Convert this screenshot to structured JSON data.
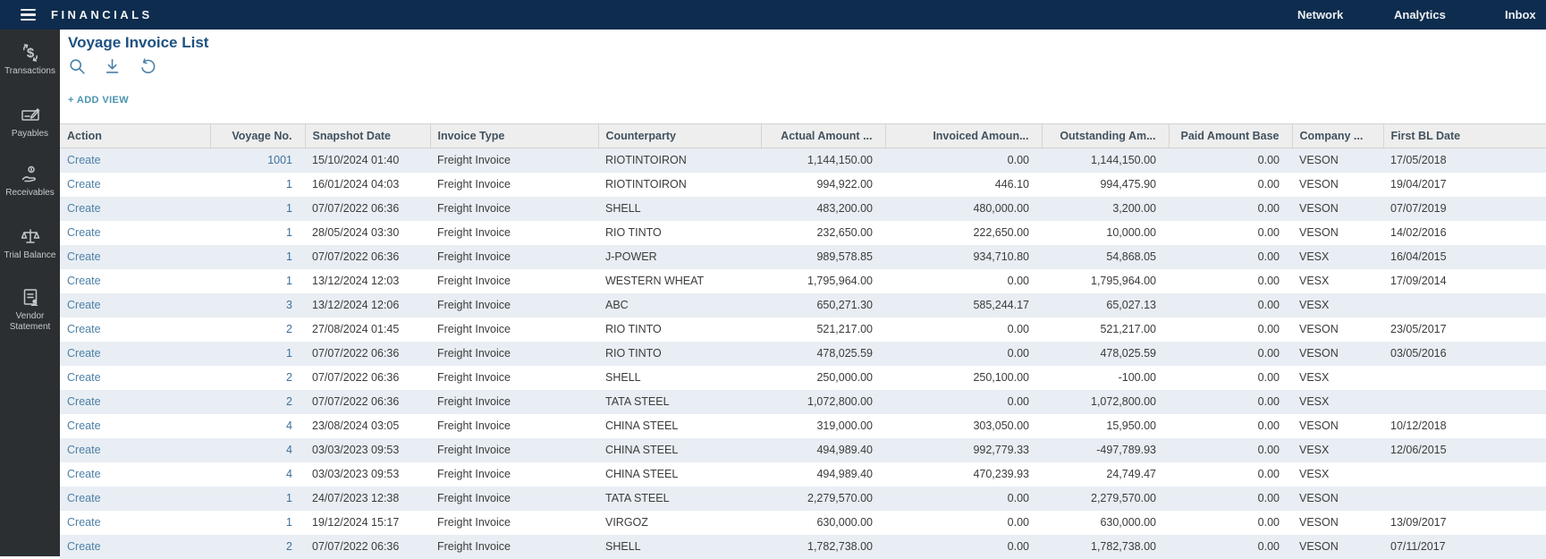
{
  "topbar": {
    "brand": "FINANCIALS",
    "nav": {
      "network": "Network",
      "analytics": "Analytics",
      "inbox": "Inbox"
    }
  },
  "sidebar": {
    "items": [
      {
        "label": "Transactions",
        "icon": "transactions-icon"
      },
      {
        "label": "Payables",
        "icon": "payables-icon"
      },
      {
        "label": "Receivables",
        "icon": "receivables-icon"
      },
      {
        "label": "Trial Balance",
        "icon": "trial-balance-icon"
      },
      {
        "label": "Vendor Statement",
        "icon": "vendor-statement-icon"
      }
    ]
  },
  "page": {
    "title": "Voyage Invoice List",
    "add_view_label": "+ ADD VIEW",
    "toolbar_icons": [
      "search-icon",
      "export-icon",
      "reset-icon"
    ]
  },
  "table": {
    "columns": [
      "Action",
      "Voyage No.",
      "Snapshot Date",
      "Invoice Type",
      "Counterparty",
      "Actual Amount ...",
      "Invoiced Amoun...",
      "Outstanding Am...",
      "Paid Amount Base",
      "Company ...",
      "First BL Date"
    ],
    "rows": [
      [
        "Create",
        "1001",
        "15/10/2024 01:40",
        "Freight Invoice",
        "RIOTINTOIRON",
        "1,144,150.00",
        "0.00",
        "1,144,150.00",
        "0.00",
        "VESON",
        "17/05/2018"
      ],
      [
        "Create",
        "1",
        "16/01/2024 04:03",
        "Freight Invoice",
        "RIOTINTOIRON",
        "994,922.00",
        "446.10",
        "994,475.90",
        "0.00",
        "VESON",
        "19/04/2017"
      ],
      [
        "Create",
        "1",
        "07/07/2022 06:36",
        "Freight Invoice",
        "SHELL",
        "483,200.00",
        "480,000.00",
        "3,200.00",
        "0.00",
        "VESON",
        "07/07/2019"
      ],
      [
        "Create",
        "1",
        "28/05/2024 03:30",
        "Freight Invoice",
        "RIO TINTO",
        "232,650.00",
        "222,650.00",
        "10,000.00",
        "0.00",
        "VESON",
        "14/02/2016"
      ],
      [
        "Create",
        "1",
        "07/07/2022 06:36",
        "Freight Invoice",
        "J-POWER",
        "989,578.85",
        "934,710.80",
        "54,868.05",
        "0.00",
        "VESX",
        "16/04/2015"
      ],
      [
        "Create",
        "1",
        "13/12/2024 12:03",
        "Freight Invoice",
        "WESTERN WHEAT",
        "1,795,964.00",
        "0.00",
        "1,795,964.00",
        "0.00",
        "VESX",
        "17/09/2014"
      ],
      [
        "Create",
        "3",
        "13/12/2024 12:06",
        "Freight Invoice",
        "ABC",
        "650,271.30",
        "585,244.17",
        "65,027.13",
        "0.00",
        "VESX",
        ""
      ],
      [
        "Create",
        "2",
        "27/08/2024 01:45",
        "Freight Invoice",
        "RIO TINTO",
        "521,217.00",
        "0.00",
        "521,217.00",
        "0.00",
        "VESON",
        "23/05/2017"
      ],
      [
        "Create",
        "1",
        "07/07/2022 06:36",
        "Freight Invoice",
        "RIO TINTO",
        "478,025.59",
        "0.00",
        "478,025.59",
        "0.00",
        "VESON",
        "03/05/2016"
      ],
      [
        "Create",
        "2",
        "07/07/2022 06:36",
        "Freight Invoice",
        "SHELL",
        "250,000.00",
        "250,100.00",
        "-100.00",
        "0.00",
        "VESX",
        ""
      ],
      [
        "Create",
        "2",
        "07/07/2022 06:36",
        "Freight Invoice",
        "TATA STEEL",
        "1,072,800.00",
        "0.00",
        "1,072,800.00",
        "0.00",
        "VESX",
        ""
      ],
      [
        "Create",
        "4",
        "23/08/2024 03:05",
        "Freight Invoice",
        "CHINA STEEL",
        "319,000.00",
        "303,050.00",
        "15,950.00",
        "0.00",
        "VESON",
        "10/12/2018"
      ],
      [
        "Create",
        "4",
        "03/03/2023 09:53",
        "Freight Invoice",
        "CHINA STEEL",
        "494,989.40",
        "992,779.33",
        "-497,789.93",
        "0.00",
        "VESX",
        "12/06/2015"
      ],
      [
        "Create",
        "4",
        "03/03/2023 09:53",
        "Freight Invoice",
        "CHINA STEEL",
        "494,989.40",
        "470,239.93",
        "24,749.47",
        "0.00",
        "VESX",
        ""
      ],
      [
        "Create",
        "1",
        "24/07/2023 12:38",
        "Freight Invoice",
        "TATA STEEL",
        "2,279,570.00",
        "0.00",
        "2,279,570.00",
        "0.00",
        "VESON",
        ""
      ],
      [
        "Create",
        "1",
        "19/12/2024 15:17",
        "Freight Invoice",
        "VIRGOZ",
        "630,000.00",
        "0.00",
        "630,000.00",
        "0.00",
        "VESON",
        "13/09/2017"
      ],
      [
        "Create",
        "2",
        "07/07/2022 06:36",
        "Freight Invoice",
        "SHELL",
        "1,782,738.00",
        "0.00",
        "1,782,738.00",
        "0.00",
        "VESON",
        "07/11/2017"
      ]
    ]
  },
  "colors": {
    "topbar": "#0e2c4e",
    "sidebar": "#2c2f32",
    "title": "#1e5180",
    "link": "#4d80a8",
    "row_stripe": "#e8eef3",
    "add_view": "#4a93b0"
  }
}
